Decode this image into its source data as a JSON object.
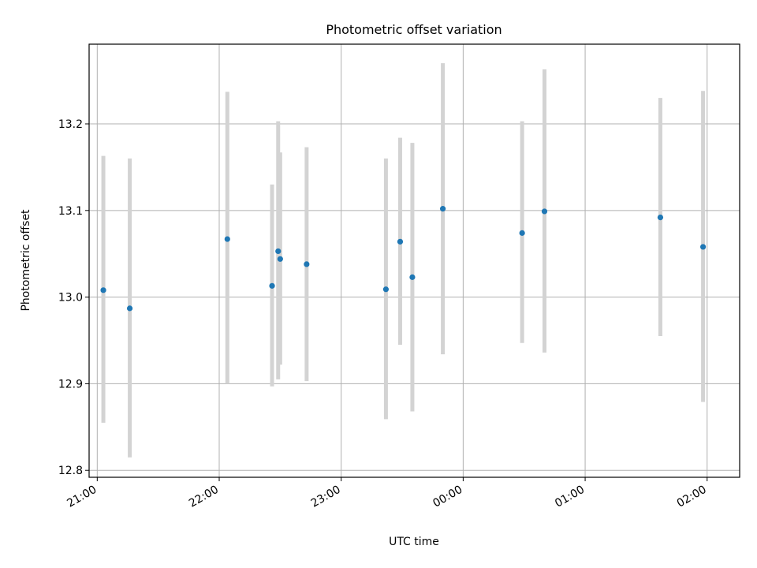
{
  "chart_data": {
    "type": "scatter",
    "title": "Photometric offset variation",
    "xlabel": "UTC time",
    "ylabel": "Photometric offset",
    "x_ticks": [
      "21:00",
      "22:00",
      "23:00",
      "00:00",
      "01:00",
      "02:00"
    ],
    "y_ticks": [
      "12.8",
      "12.9",
      "13.0",
      "13.1",
      "13.2"
    ],
    "xlim": [
      "20:56",
      "02:16"
    ],
    "ylim": [
      12.792,
      13.292
    ],
    "grid": true,
    "colors": {
      "marker": "#1f77b4",
      "errorbar": "#d3d3d3",
      "grid": "#b0b0b0"
    },
    "series": [
      {
        "points": [
          {
            "x": "21:03",
            "y": 13.008,
            "ylow": 12.855,
            "yhigh": 13.163
          },
          {
            "x": "21:16",
            "y": 12.987,
            "ylow": 12.815,
            "yhigh": 13.16
          },
          {
            "x": "22:04",
            "y": 13.067,
            "ylow": 12.9,
            "yhigh": 13.237
          },
          {
            "x": "22:26",
            "y": 13.013,
            "ylow": 12.897,
            "yhigh": 13.13
          },
          {
            "x": "22:29",
            "y": 13.053,
            "ylow": 12.905,
            "yhigh": 13.203
          },
          {
            "x": "22:30",
            "y": 13.044,
            "ylow": 12.922,
            "yhigh": 13.167
          },
          {
            "x": "22:43",
            "y": 13.038,
            "ylow": 12.903,
            "yhigh": 13.173
          },
          {
            "x": "23:22",
            "y": 13.009,
            "ylow": 12.859,
            "yhigh": 13.16
          },
          {
            "x": "23:29",
            "y": 13.064,
            "ylow": 12.945,
            "yhigh": 13.184
          },
          {
            "x": "23:35",
            "y": 13.023,
            "ylow": 12.868,
            "yhigh": 13.178
          },
          {
            "x": "23:50",
            "y": 13.102,
            "ylow": 12.934,
            "yhigh": 13.27
          },
          {
            "x": "00:29",
            "y": 13.074,
            "ylow": 12.947,
            "yhigh": 13.203
          },
          {
            "x": "00:40",
            "y": 13.099,
            "ylow": 12.936,
            "yhigh": 13.263
          },
          {
            "x": "01:37",
            "y": 13.092,
            "ylow": 12.955,
            "yhigh": 13.23
          },
          {
            "x": "01:58",
            "y": 13.058,
            "ylow": 12.879,
            "yhigh": 13.238
          }
        ]
      }
    ]
  }
}
